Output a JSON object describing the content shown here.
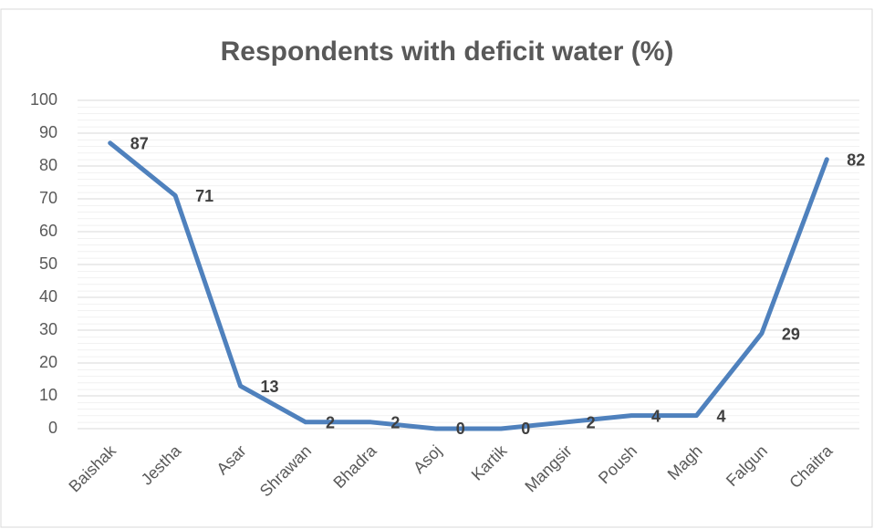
{
  "chart_data": {
    "type": "line",
    "title": "Respondents with deficit water  (%)",
    "categories": [
      "Baishak",
      "Jestha",
      "Asar",
      "Shrawan",
      "Bhadra",
      "Asoj",
      "Kartik",
      "Mangsir",
      "Poush",
      "Magh",
      "Falgun",
      "Chaitra"
    ],
    "values": [
      87,
      71,
      13,
      2,
      2,
      0,
      0,
      2,
      4,
      4,
      29,
      82
    ],
    "color": "#4f81bd",
    "ylim": [
      0,
      100
    ],
    "yticks": [
      0,
      10,
      20,
      30,
      40,
      50,
      60,
      70,
      80,
      90,
      100
    ],
    "grid": true
  }
}
